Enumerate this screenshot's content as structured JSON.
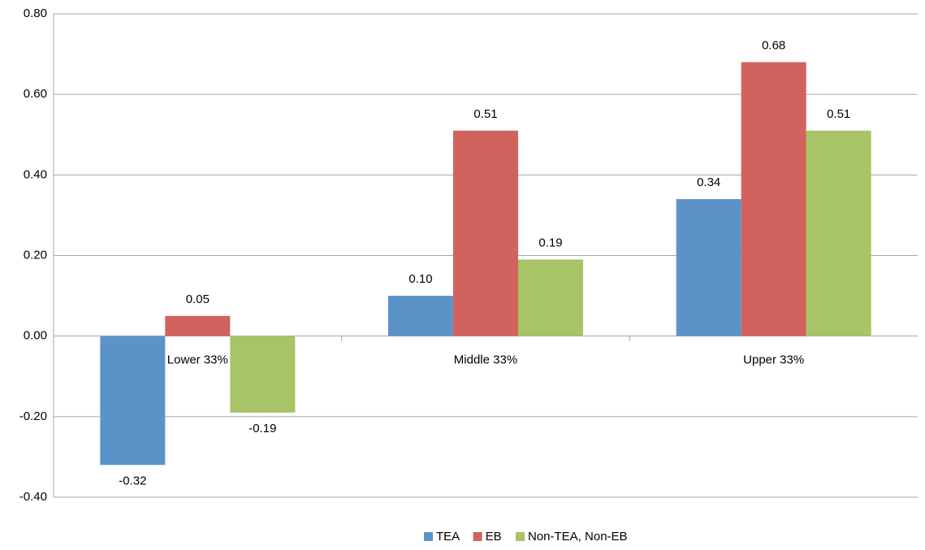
{
  "chart_data": {
    "type": "bar",
    "categories": [
      "Lower 33%",
      "Middle 33%",
      "Upper 33%"
    ],
    "series": [
      {
        "name": "TEA",
        "color": "#5b93c9",
        "values": [
          -0.32,
          0.1,
          0.34
        ],
        "value_labels": [
          "-0.32",
          "0.10",
          "0.34"
        ]
      },
      {
        "name": "EB",
        "color": "#d0635d",
        "values": [
          0.05,
          0.51,
          0.68
        ],
        "value_labels": [
          "0.05",
          "0.51",
          "0.68"
        ]
      },
      {
        "name": "Non-TEA, Non-EB",
        "color": "#a7c466",
        "values": [
          -0.19,
          0.19,
          0.51
        ],
        "value_labels": [
          "-0.19",
          "0.19",
          "0.51"
        ]
      }
    ],
    "ylim": [
      -0.4,
      0.8
    ],
    "yticks": [
      {
        "value": -0.4,
        "label": "-0.40"
      },
      {
        "value": -0.2,
        "label": "-0.20"
      },
      {
        "value": 0,
        "label": "0.00"
      },
      {
        "value": 0.2,
        "label": "0.20"
      },
      {
        "value": 0.4,
        "label": "0.40"
      },
      {
        "value": 0.6,
        "label": "0.60"
      },
      {
        "value": 0.8,
        "label": "0.80"
      }
    ],
    "grid": true,
    "legend": "bottom"
  }
}
